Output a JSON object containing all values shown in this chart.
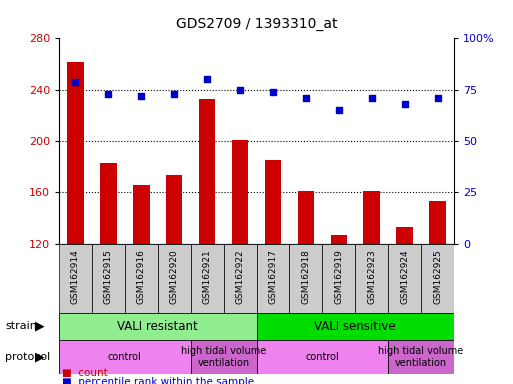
{
  "title": "GDS2709 / 1393310_at",
  "samples": [
    "GSM162914",
    "GSM162915",
    "GSM162916",
    "GSM162920",
    "GSM162921",
    "GSM162922",
    "GSM162917",
    "GSM162918",
    "GSM162919",
    "GSM162923",
    "GSM162924",
    "GSM162925"
  ],
  "counts": [
    262,
    183,
    166,
    174,
    233,
    201,
    185,
    161,
    127,
    161,
    133,
    153
  ],
  "percentiles": [
    79,
    73,
    72,
    73,
    80,
    75,
    74,
    71,
    65,
    71,
    68,
    71
  ],
  "ylim_left": [
    120,
    280
  ],
  "ylim_right": [
    0,
    100
  ],
  "bar_color": "#cc0000",
  "dot_color": "#0000cc",
  "bg_color": "#ffffff",
  "tick_label_bg": "#cccccc",
  "strain_groups": [
    {
      "label": "VALI resistant",
      "start": 0,
      "end": 6,
      "color": "#90ee90"
    },
    {
      "label": "VALI sensitive",
      "start": 6,
      "end": 12,
      "color": "#00dd00"
    }
  ],
  "protocol_groups": [
    {
      "label": "control",
      "start": 0,
      "end": 4,
      "color": "#ee82ee"
    },
    {
      "label": "high tidal volume\nventilation",
      "start": 4,
      "end": 6,
      "color": "#cc66cc"
    },
    {
      "label": "control",
      "start": 6,
      "end": 10,
      "color": "#ee82ee"
    },
    {
      "label": "high tidal volume\nventilation",
      "start": 10,
      "end": 12,
      "color": "#cc66cc"
    }
  ],
  "legend_count_label": "count",
  "legend_pct_label": "percentile rank within the sample",
  "yticks_left": [
    120,
    160,
    200,
    240,
    280
  ],
  "yticks_right": [
    0,
    25,
    50,
    75,
    100
  ],
  "hgrid_values": [
    160,
    200,
    240
  ],
  "strain_label": "strain",
  "protocol_label": "protocol"
}
